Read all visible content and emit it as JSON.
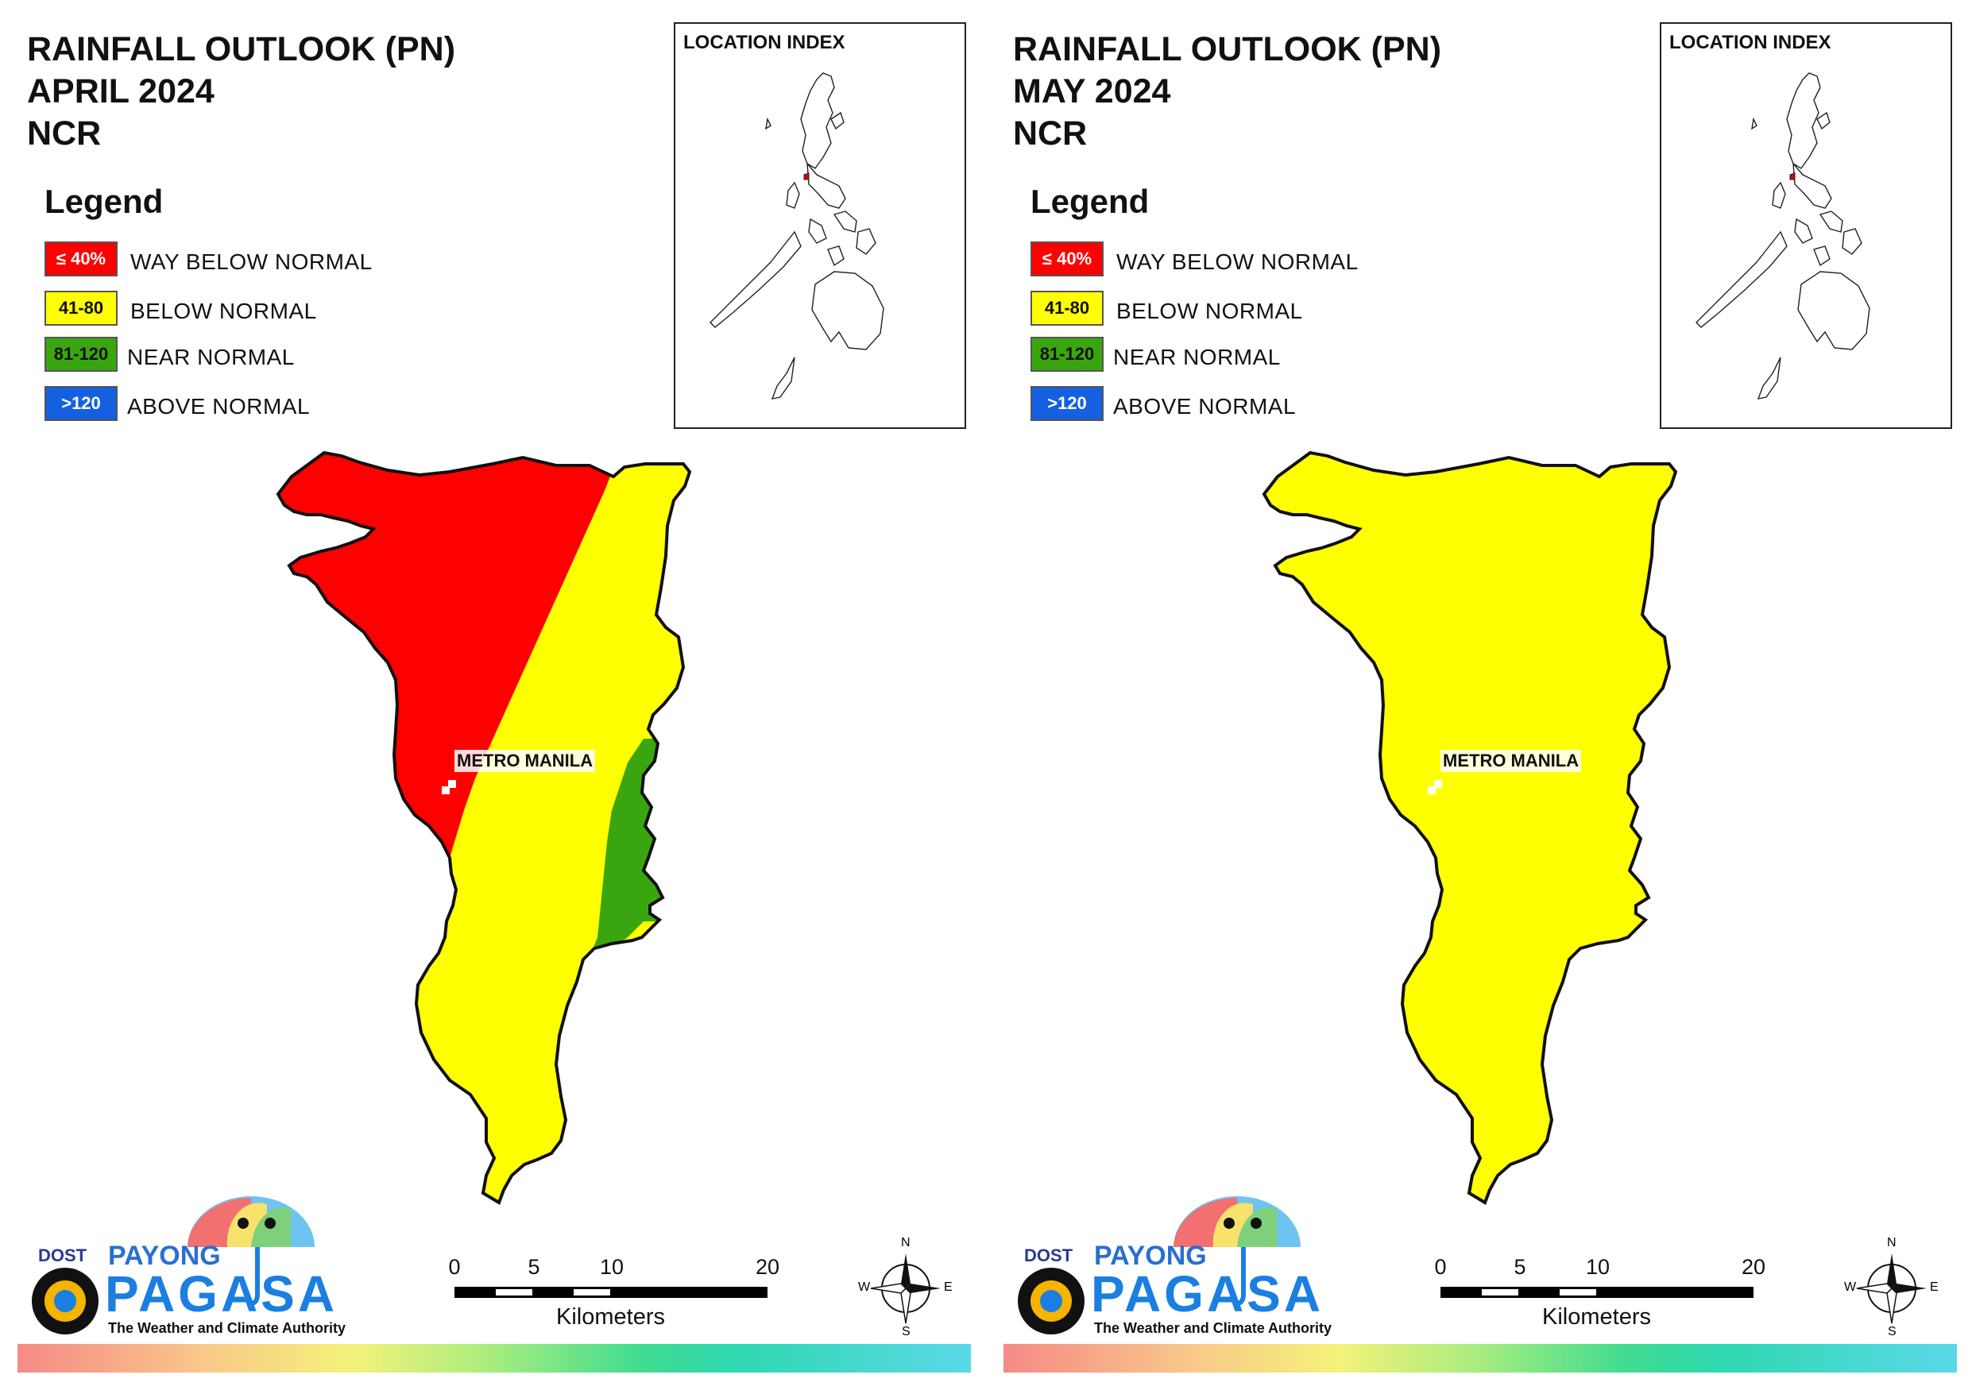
{
  "panels": [
    {
      "title_line1": "RAINFALL OUTLOOK (PN)",
      "title_line2": "APRIL 2024",
      "title_line3": "NCR",
      "map_label": "METRO MANILA",
      "regions": {
        "west_band": "way_below_normal",
        "middle_band": "below_normal",
        "east_patch": "near_normal"
      }
    },
    {
      "title_line1": "RAINFALL OUTLOOK (PN)",
      "title_line2": "MAY 2024",
      "title_line3": "NCR",
      "map_label": "METRO MANILA",
      "regions": {
        "whole_region": "below_normal"
      }
    }
  ],
  "legend": {
    "heading": "Legend",
    "items": [
      {
        "swatch": "≤ 40%",
        "label": "WAY BELOW NORMAL",
        "color": "#ff0000",
        "text_color": "#ffffff"
      },
      {
        "swatch": "41-80",
        "label": "BELOW NORMAL",
        "color": "#ffff00",
        "text_color": "#111111"
      },
      {
        "swatch": "81-120",
        "label": "NEAR NORMAL",
        "color": "#3aa60f",
        "text_color": "#111111"
      },
      {
        "swatch": ">120",
        "label": "ABOVE NORMAL",
        "color": "#1560e0",
        "text_color": "#ffffff"
      }
    ]
  },
  "inset": {
    "title": "LOCATION INDEX"
  },
  "scale_bar": {
    "ticks": [
      "0",
      "5",
      "10",
      "20"
    ],
    "unit": "Kilometers"
  },
  "compass": {
    "n": "N",
    "s": "S",
    "e": "E",
    "w": "W"
  },
  "logo": {
    "dost": "DOST",
    "payong": "PAYONG",
    "pagasa": "PAGASA",
    "tagline": "The Weather and Climate Authority"
  }
}
